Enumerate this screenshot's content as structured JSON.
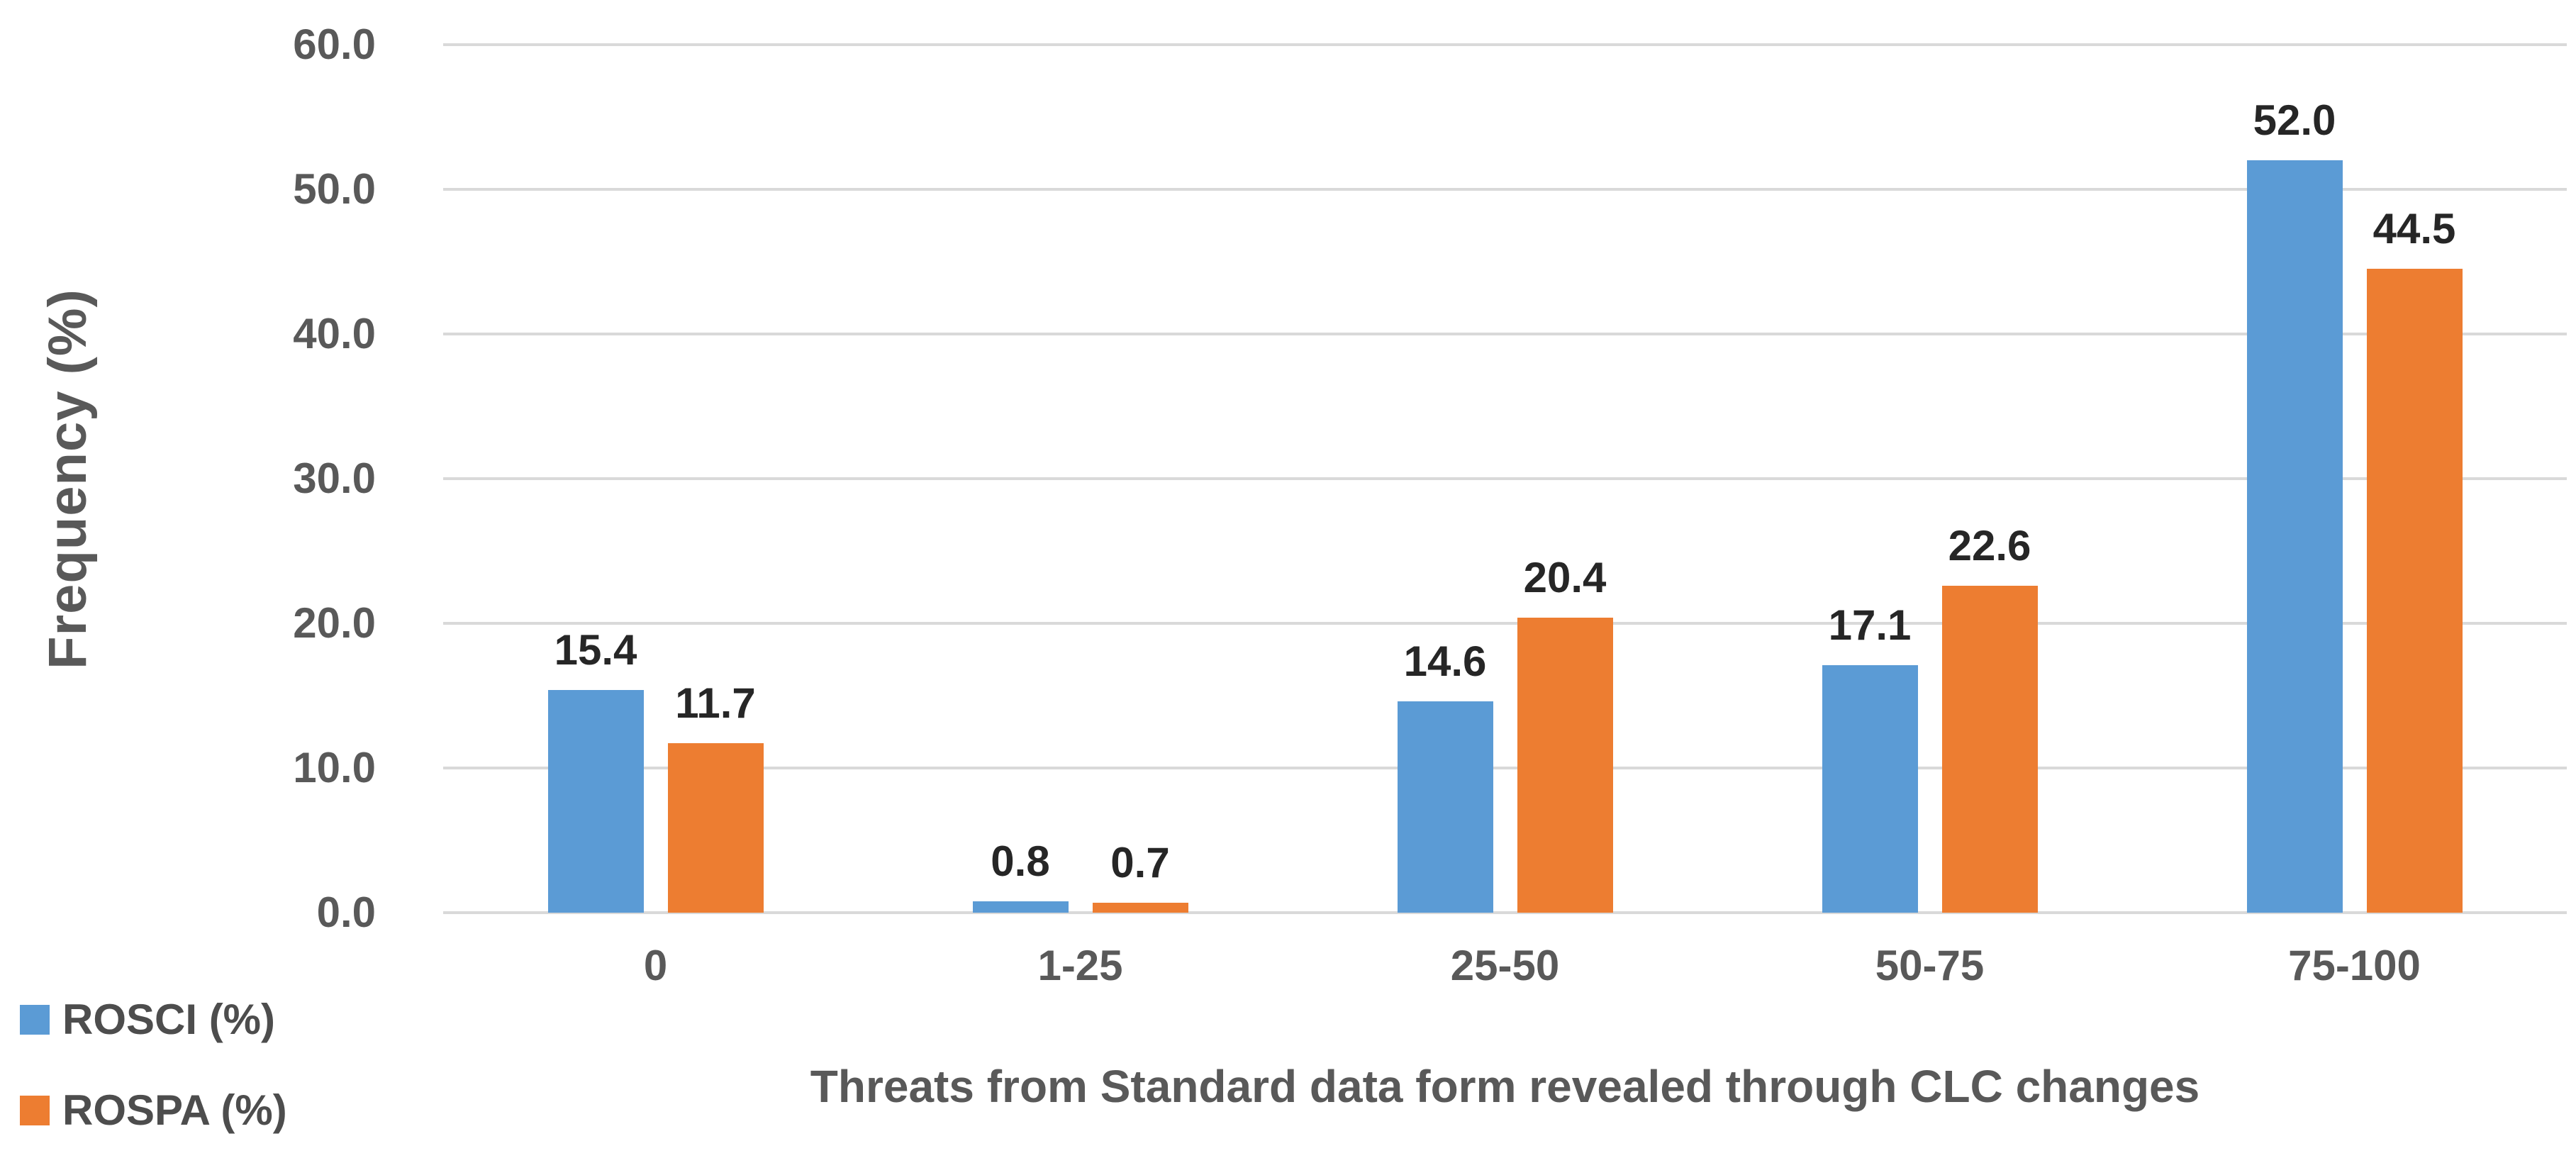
{
  "chart_data": {
    "type": "bar",
    "title": "",
    "xlabel": "Threats from Standard data form revealed through CLC changes",
    "ylabel": "Frequency (%)",
    "categories": [
      "0",
      "1-25",
      "25-50",
      "50-75",
      "75-100"
    ],
    "series": [
      {
        "name": "ROSCI (%)",
        "color": "#5B9BD5",
        "values": [
          15.4,
          0.8,
          14.6,
          17.1,
          52.0
        ],
        "value_labels": [
          "15.4",
          "0.8",
          "14.6",
          "17.1",
          "52.0"
        ]
      },
      {
        "name": "ROSPA (%)",
        "color": "#ED7D31",
        "values": [
          11.7,
          0.7,
          20.4,
          22.6,
          44.5
        ],
        "value_labels": [
          "11.7",
          "0.7",
          "20.4",
          "22.6",
          "44.5"
        ]
      }
    ],
    "ylim": [
      0,
      60
    ],
    "ytick_step": 10,
    "ytick_labels": [
      "0.0",
      "10.0",
      "20.0",
      "30.0",
      "40.0",
      "50.0",
      "60.0"
    ],
    "grid": true,
    "legend_position": "bottom-left",
    "colors": {
      "gridline": "#d9d9d9",
      "axis_text": "#595959",
      "data_label": "#262626",
      "background": "#ffffff"
    }
  }
}
